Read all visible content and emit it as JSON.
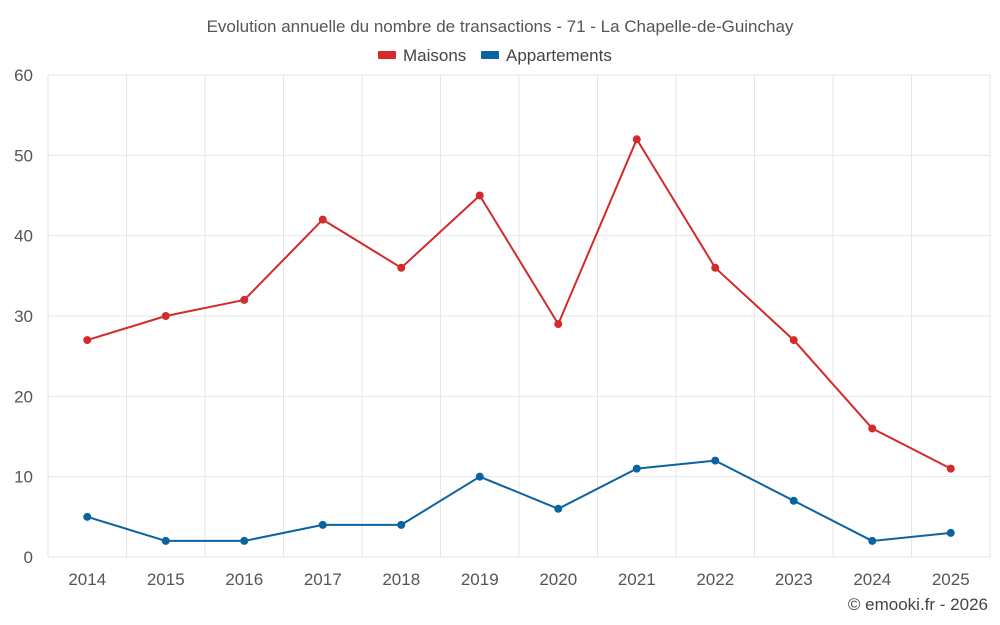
{
  "chart_data": {
    "type": "line",
    "title": "Evolution annuelle du nombre de transactions - 71 - La Chapelle-de-Guinchay",
    "xlabel": "",
    "ylabel": "",
    "categories": [
      "2014",
      "2015",
      "2016",
      "2017",
      "2018",
      "2019",
      "2020",
      "2021",
      "2022",
      "2023",
      "2024",
      "2025"
    ],
    "ylim": [
      0,
      60
    ],
    "yticks": [
      0,
      10,
      20,
      30,
      40,
      50,
      60
    ],
    "grid": true,
    "legend_position": "top-center",
    "series": [
      {
        "name": "Maisons",
        "color": "#d32a2a",
        "values": [
          27,
          30,
          32,
          42,
          36,
          45,
          29,
          52,
          36,
          27,
          16,
          11
        ]
      },
      {
        "name": "Appartements",
        "color": "#0b63a0",
        "values": [
          5,
          2,
          2,
          4,
          4,
          10,
          6,
          11,
          12,
          7,
          2,
          3
        ]
      }
    ]
  },
  "credit": "© emooki.fr - 2026"
}
